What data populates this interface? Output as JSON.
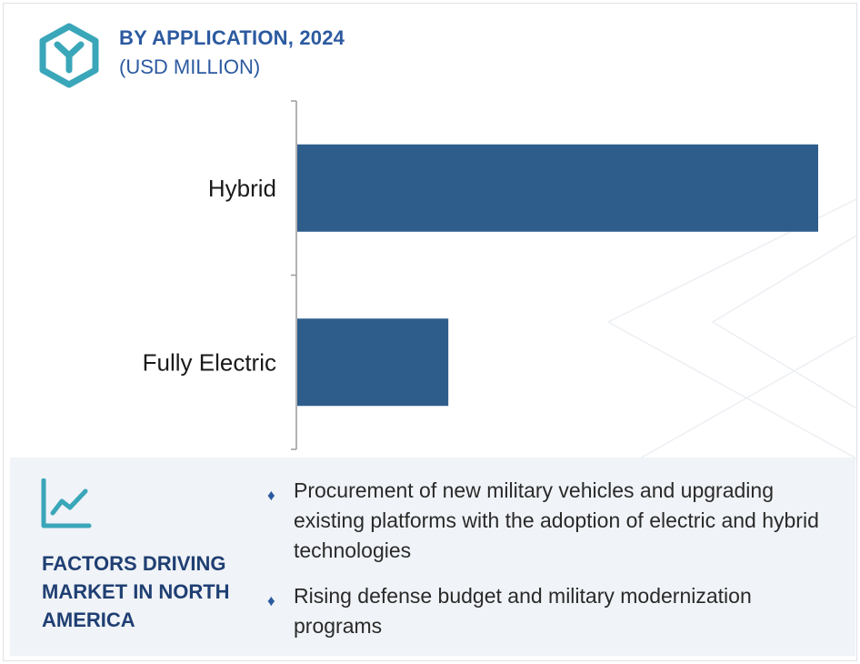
{
  "header": {
    "title": "BY APPLICATION, 2024",
    "subtitle": "(USD MILLION)"
  },
  "colors": {
    "accent": "#2c5aa0",
    "bar": "#2e5d8c",
    "logo": "#3aa6b9",
    "panel_bg": "#f0f3f7",
    "title_dark": "#1f3f73"
  },
  "icons": {
    "logo": "hexagon-y-logo-icon",
    "factors": "line-chart-trend-icon",
    "bullet": "diamond-bullet-icon"
  },
  "chart_data": {
    "type": "bar",
    "orientation": "horizontal",
    "title": "BY APPLICATION, 2024",
    "subtitle": "(USD MILLION)",
    "categories": [
      "Hybrid",
      "Fully Electric"
    ],
    "values": [
      100,
      29
    ],
    "xlim": [
      0,
      100
    ],
    "grid": false,
    "legend": "none"
  },
  "factors": {
    "title": "FACTORS DRIVING MARKET IN NORTH AMERICA",
    "items": [
      "Procurement of new military vehicles and upgrading existing platforms with the adoption of electric and hybrid technologies",
      "Rising defense budget and military modernization programs"
    ]
  }
}
